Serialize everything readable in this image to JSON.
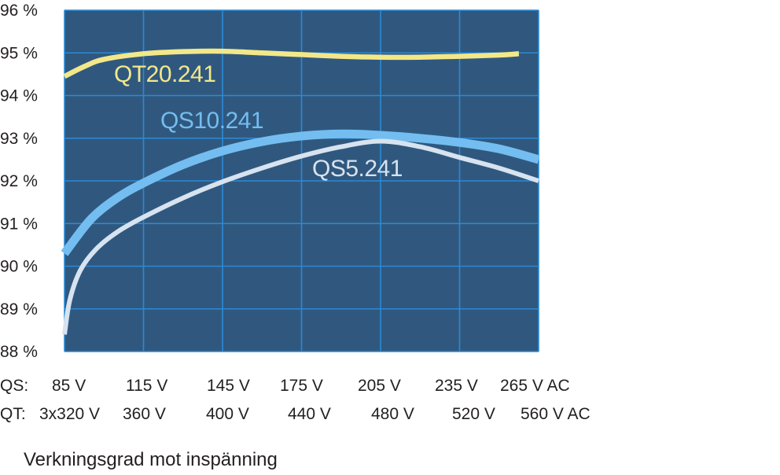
{
  "chart_data": {
    "type": "line",
    "xlabel": "",
    "ylabel": "",
    "ylim": [
      88,
      96
    ],
    "y_ticks": [
      "96 %",
      "95 %",
      "94 %",
      "93 %",
      "92 %",
      "91 %",
      "90 %",
      "89 %",
      "88 %"
    ],
    "y_tick_values": [
      96,
      95,
      94,
      93,
      92,
      91,
      90,
      89,
      88
    ],
    "grid": true,
    "background_color": "#30587f",
    "grid_color": "#2a8ad6",
    "x_axes": [
      {
        "prefix": "QS:",
        "ticks": [
          "85 V",
          "115 V",
          "145 V",
          "175 V",
          "205 V",
          "235 V",
          "265 V AC"
        ],
        "values": [
          85,
          115,
          145,
          175,
          205,
          235,
          265
        ],
        "unit": "V AC"
      },
      {
        "prefix": "QT:",
        "ticks": [
          "3x320 V",
          "360 V",
          "400 V",
          "440 V",
          "480 V",
          "520 V",
          "560 V AC"
        ],
        "values": [
          320,
          360,
          400,
          440,
          480,
          520,
          560
        ],
        "unit": "V AC"
      }
    ],
    "series": [
      {
        "name": "QT20.241",
        "axis": "QT",
        "color": "#f3e889",
        "x": [
          320,
          330,
          340,
          360,
          380,
          400,
          420,
          440,
          460,
          480,
          500,
          520,
          540,
          550
        ],
        "y": [
          94.45,
          94.68,
          94.85,
          94.98,
          95.03,
          95.04,
          95.0,
          94.96,
          94.92,
          94.9,
          94.9,
          94.92,
          94.95,
          94.98
        ]
      },
      {
        "name": "QS10.241",
        "axis": "QS",
        "color": "#74bdf0",
        "x": [
          85,
          95,
          105,
          115,
          130,
          145,
          160,
          175,
          190,
          205,
          220,
          235,
          250,
          265
        ],
        "y": [
          90.3,
          91.1,
          91.6,
          91.95,
          92.38,
          92.7,
          92.92,
          93.05,
          93.1,
          93.07,
          93.0,
          92.9,
          92.75,
          92.5
        ]
      },
      {
        "name": "QS5.241",
        "axis": "QS",
        "color": "#d7e3ef",
        "x": [
          85,
          87,
          91,
          97,
          105,
          115,
          130,
          145,
          160,
          175,
          190,
          205,
          220,
          235,
          250,
          265
        ],
        "y": [
          88.4,
          89.2,
          89.9,
          90.4,
          90.8,
          91.15,
          91.6,
          91.98,
          92.3,
          92.58,
          92.8,
          92.93,
          92.8,
          92.55,
          92.3,
          92.0
        ]
      }
    ]
  },
  "caption": "Verkningsgrad mot inspänning"
}
